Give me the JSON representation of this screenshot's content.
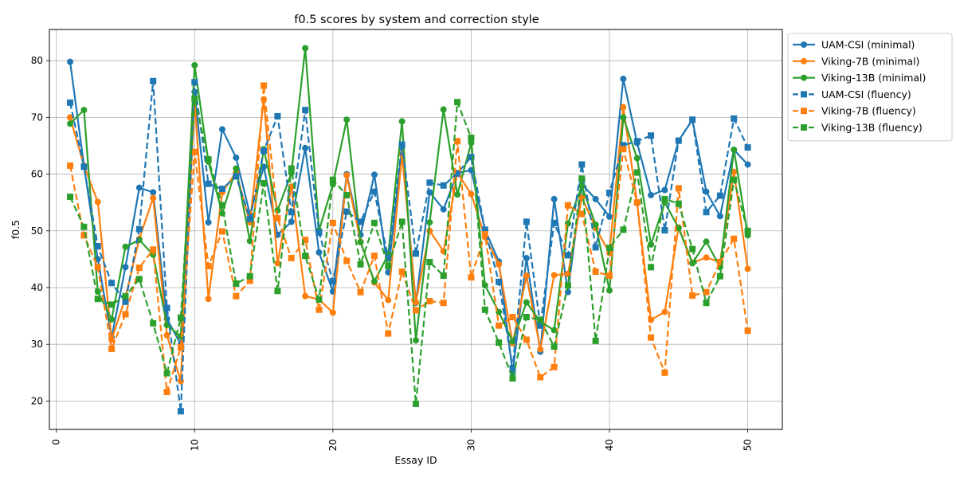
{
  "chart_data": {
    "type": "line",
    "title": "f0.5 scores by system and correction style",
    "xlabel": "Essay ID",
    "ylabel": "f0.5",
    "xlim": [
      -0.5,
      52.5
    ],
    "ylim": [
      15,
      85.5
    ],
    "xticks": [
      0,
      10,
      20,
      30,
      40,
      50
    ],
    "yticks": [
      20,
      30,
      40,
      50,
      60,
      70,
      80
    ],
    "grid": true,
    "legend_position": "outside-top-right",
    "x": [
      1,
      2,
      3,
      4,
      5,
      6,
      7,
      8,
      9,
      10,
      11,
      12,
      13,
      14,
      15,
      16,
      17,
      18,
      19,
      20,
      21,
      22,
      23,
      24,
      25,
      26,
      27,
      28,
      29,
      30,
      31,
      32,
      33,
      34,
      35,
      36,
      37,
      38,
      39,
      40,
      41,
      42,
      43,
      44,
      45,
      46,
      47,
      48,
      49,
      50
    ],
    "series": [
      {
        "name": "UAM-CSI (minimal)",
        "color": "#1f77b4",
        "linestyle": "solid",
        "marker": "circle",
        "values": [
          79.8,
          61.5,
          45.0,
          31.2,
          43.6,
          57.6,
          56.8,
          34.5,
          30.0,
          74.5,
          51.5,
          67.9,
          62.9,
          52.9,
          61.3,
          49.3,
          51.6,
          64.6,
          46.2,
          39.3,
          60.0,
          49.3,
          59.9,
          42.7,
          64.7,
          37.3,
          56.8,
          53.8,
          60.2,
          60.7,
          50.2,
          44.6,
          25.0,
          45.2,
          28.7,
          55.6,
          39.2,
          58.2,
          55.6,
          52.5,
          76.8,
          65.5,
          56.3,
          57.2,
          65.9,
          69.6,
          56.9,
          52.6,
          64.3,
          61.7
        ]
      },
      {
        "name": "Viking-7B (minimal)",
        "color": "#ff7f0e",
        "linestyle": "solid",
        "marker": "circle",
        "values": [
          70.0,
          61.5,
          55.1,
          30.8,
          38.3,
          48.6,
          55.8,
          31.6,
          23.5,
          72.9,
          38.0,
          56.8,
          60.3,
          51.5,
          73.2,
          44.3,
          57.8,
          38.5,
          37.9,
          35.6,
          59.8,
          48.1,
          40.9,
          37.8,
          63.5,
          37.4,
          50.0,
          46.4,
          60.2,
          56.5,
          48.9,
          44.1,
          30.2,
          42.1,
          29.1,
          42.2,
          42.4,
          55.9,
          50.5,
          46.1,
          71.8,
          54.9,
          34.3,
          35.7,
          50.6,
          44.4,
          45.3,
          44.5,
          60.4,
          43.3
        ]
      },
      {
        "name": "Viking-13B (minimal)",
        "color": "#2ca02c",
        "linestyle": "solid",
        "marker": "circle",
        "values": [
          68.9,
          71.3,
          39.3,
          34.4,
          47.2,
          48.4,
          45.8,
          33.4,
          31.4,
          79.2,
          62.2,
          53.1,
          61.0,
          48.2,
          64.4,
          53.6,
          60.2,
          82.2,
          50.1,
          58.2,
          69.6,
          48.0,
          41.1,
          45.8,
          69.3,
          30.7,
          51.5,
          71.4,
          56.4,
          65.5,
          40.4,
          35.7,
          30.5,
          37.4,
          34.0,
          32.5,
          51.3,
          57.9,
          51.1,
          39.5,
          70.0,
          62.8,
          47.6,
          55.0,
          50.5,
          44.3,
          48.1,
          43.6,
          64.3,
          49.2
        ]
      },
      {
        "name": "UAM-CSI (fluency)",
        "color": "#1f77b4",
        "linestyle": "dashed",
        "marker": "square",
        "values": [
          72.6,
          61.3,
          47.3,
          40.8,
          37.5,
          50.3,
          76.4,
          36.4,
          18.2,
          76.2,
          58.3,
          57.4,
          59.6,
          52.1,
          64.1,
          70.2,
          53.3,
          71.3,
          49.7,
          41.1,
          53.4,
          51.6,
          56.9,
          45.2,
          65.2,
          46.0,
          58.5,
          58.0,
          60.1,
          63.0,
          50.2,
          41.0,
          25.8,
          51.6,
          33.3,
          51.4,
          45.7,
          61.7,
          47.1,
          56.7,
          65.1,
          65.8,
          66.8,
          50.1,
          65.9,
          69.6,
          53.3,
          56.2,
          69.8,
          64.7
        ]
      },
      {
        "name": "Viking-7B (fluency)",
        "color": "#ff7f0e",
        "linestyle": "dashed",
        "marker": "square",
        "values": [
          61.5,
          49.2,
          43.6,
          29.2,
          35.3,
          43.5,
          46.7,
          21.6,
          29.5,
          63.9,
          43.8,
          49.9,
          38.5,
          41.2,
          75.6,
          52.2,
          45.2,
          48.4,
          36.1,
          51.4,
          44.7,
          39.2,
          45.6,
          31.9,
          42.8,
          36.0,
          37.6,
          37.3,
          65.8,
          41.8,
          49.4,
          33.3,
          34.8,
          30.8,
          24.2,
          26.0,
          54.5,
          53.0,
          42.8,
          42.1,
          64.4,
          55.0,
          31.2,
          25.0,
          57.5,
          38.6,
          39.2,
          44.5,
          48.6,
          32.4
        ]
      },
      {
        "name": "Viking-13B (fluency)",
        "color": "#2ca02c",
        "linestyle": "dashed",
        "marker": "square",
        "values": [
          56.0,
          50.7,
          38.0,
          37.0,
          38.5,
          41.5,
          33.7,
          24.9,
          34.7,
          73.3,
          62.6,
          54.5,
          40.7,
          42.0,
          58.4,
          39.4,
          61.0,
          45.6,
          37.9,
          59.0,
          56.3,
          44.1,
          51.4,
          43.8,
          51.6,
          19.5,
          44.5,
          42.1,
          72.7,
          66.4,
          36.1,
          30.3,
          24.0,
          34.8,
          34.3,
          29.6,
          40.4,
          59.2,
          30.6,
          47.0,
          50.2,
          60.3,
          43.6,
          55.6,
          54.8,
          46.8,
          37.3,
          42.0,
          59.0,
          50.0
        ]
      }
    ]
  }
}
